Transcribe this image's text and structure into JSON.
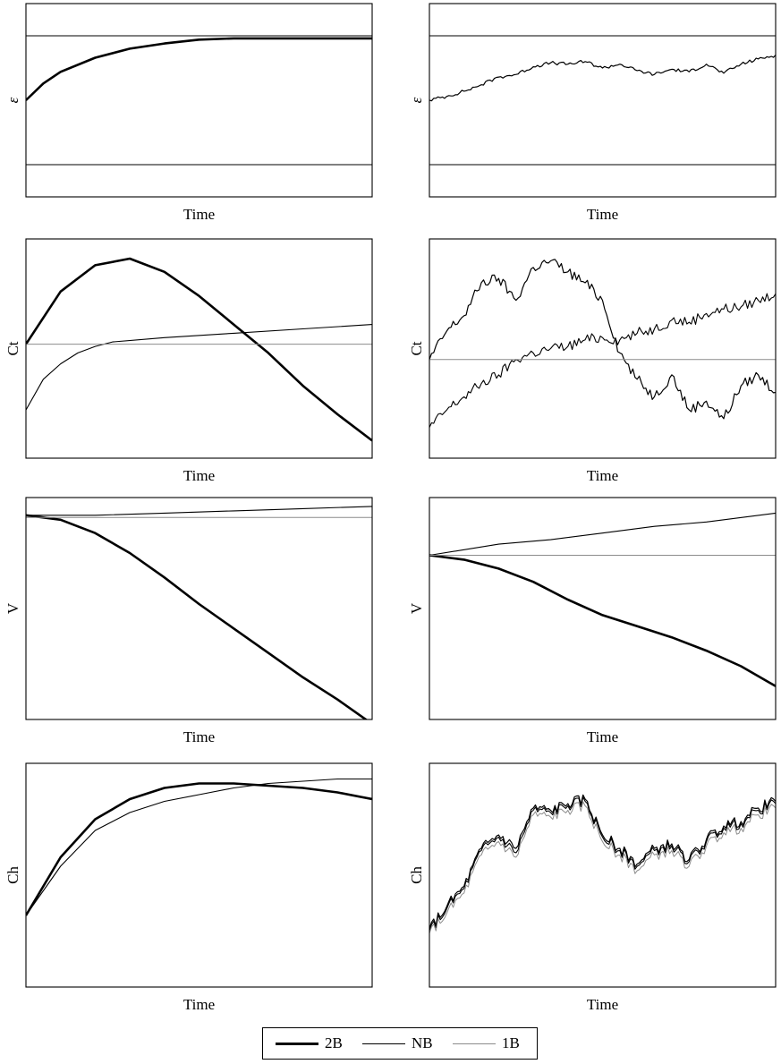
{
  "legend": [
    {
      "label": "2B",
      "color": "#000000",
      "weight": "thick"
    },
    {
      "label": "NB",
      "color": "#000000",
      "weight": "thin"
    },
    {
      "label": "1B",
      "color": "#8c8c8c",
      "weight": "thin"
    }
  ],
  "chart_data": [
    {
      "type": "line",
      "panel": "eps-deterministic",
      "xlabel": "Time",
      "ylabel": "ε",
      "hlines": [
        0.0,
        1.0
      ],
      "ylim": [
        -0.25,
        1.25
      ],
      "xlim": [
        0,
        100
      ],
      "series": [
        {
          "id": "2B",
          "x": [
            0,
            5,
            10,
            20,
            30,
            40,
            50,
            60,
            80,
            100
          ],
          "y": [
            0.5,
            0.63,
            0.72,
            0.83,
            0.9,
            0.94,
            0.97,
            0.98,
            0.98,
            0.98
          ]
        }
      ]
    },
    {
      "type": "line",
      "panel": "eps-stochastic",
      "xlabel": "Time",
      "ylabel": "ε",
      "hlines": [
        0.0,
        1.0
      ],
      "ylim": [
        -0.25,
        1.25
      ],
      "xlim": [
        0,
        100
      ],
      "series": [
        {
          "id": "2B",
          "x": [
            0,
            5,
            10,
            15,
            20,
            25,
            30,
            35,
            40,
            45,
            50,
            55,
            60,
            65,
            70,
            75,
            80,
            85,
            90,
            95,
            100
          ],
          "y": [
            0.5,
            0.53,
            0.57,
            0.62,
            0.68,
            0.7,
            0.76,
            0.79,
            0.78,
            0.8,
            0.75,
            0.78,
            0.73,
            0.7,
            0.74,
            0.72,
            0.78,
            0.71,
            0.78,
            0.82,
            0.85
          ]
        }
      ]
    },
    {
      "type": "line",
      "panel": "ct-deterministic",
      "xlabel": "Time",
      "ylabel": "Ct",
      "ylim": [
        0,
        1
      ],
      "xlim": [
        0,
        100
      ],
      "series": [
        {
          "id": "2B",
          "x": [
            0,
            10,
            20,
            30,
            40,
            50,
            60,
            70,
            80,
            90,
            100
          ],
          "y": [
            0.52,
            0.76,
            0.88,
            0.91,
            0.85,
            0.74,
            0.61,
            0.48,
            0.33,
            0.2,
            0.08
          ]
        },
        {
          "id": "NB",
          "x": [
            0,
            5,
            10,
            15,
            20,
            25,
            40,
            60,
            80,
            100
          ],
          "y": [
            0.22,
            0.36,
            0.43,
            0.48,
            0.51,
            0.53,
            0.55,
            0.57,
            0.59,
            0.61
          ]
        },
        {
          "id": "1B",
          "x": [
            0,
            100
          ],
          "y": [
            0.52,
            0.52
          ]
        }
      ]
    },
    {
      "type": "line",
      "panel": "ct-stochastic",
      "xlabel": "Time",
      "ylabel": "Ct",
      "ylim": [
        0,
        1
      ],
      "xlim": [
        0,
        100
      ],
      "series": [
        {
          "id": "2B",
          "x": [
            0,
            5,
            10,
            15,
            20,
            25,
            30,
            35,
            40,
            45,
            50,
            55,
            60,
            65,
            70,
            75,
            80,
            85,
            90,
            95,
            100
          ],
          "y": [
            0.45,
            0.58,
            0.65,
            0.8,
            0.82,
            0.72,
            0.87,
            0.9,
            0.85,
            0.8,
            0.72,
            0.48,
            0.36,
            0.28,
            0.38,
            0.22,
            0.26,
            0.18,
            0.33,
            0.38,
            0.3
          ]
        },
        {
          "id": "NB",
          "x": [
            0,
            5,
            10,
            15,
            20,
            25,
            30,
            35,
            40,
            45,
            50,
            55,
            60,
            65,
            70,
            75,
            80,
            85,
            90,
            95,
            100
          ],
          "y": [
            0.14,
            0.22,
            0.28,
            0.34,
            0.38,
            0.45,
            0.48,
            0.5,
            0.51,
            0.54,
            0.55,
            0.54,
            0.57,
            0.59,
            0.63,
            0.62,
            0.66,
            0.68,
            0.69,
            0.72,
            0.75
          ]
        },
        {
          "id": "1B",
          "x": [
            0,
            100
          ],
          "y": [
            0.45,
            0.45
          ]
        }
      ]
    },
    {
      "type": "line",
      "panel": "v-deterministic",
      "xlabel": "Time",
      "ylabel": "V",
      "ylim": [
        0,
        1
      ],
      "xlim": [
        0,
        100
      ],
      "series": [
        {
          "id": "2B",
          "x": [
            0,
            10,
            20,
            30,
            40,
            50,
            60,
            70,
            80,
            90,
            100
          ],
          "y": [
            0.92,
            0.9,
            0.84,
            0.75,
            0.64,
            0.52,
            0.41,
            0.3,
            0.19,
            0.09,
            -0.02
          ]
        },
        {
          "id": "NB",
          "x": [
            0,
            20,
            40,
            60,
            80,
            100
          ],
          "y": [
            0.92,
            0.92,
            0.93,
            0.94,
            0.95,
            0.96
          ]
        },
        {
          "id": "1B",
          "x": [
            0,
            100
          ],
          "y": [
            0.91,
            0.91
          ]
        }
      ]
    },
    {
      "type": "line",
      "panel": "v-stochastic",
      "xlabel": "Time",
      "ylabel": "V",
      "ylim": [
        0,
        1
      ],
      "xlim": [
        0,
        100
      ],
      "series": [
        {
          "id": "2B",
          "x": [
            0,
            10,
            20,
            30,
            40,
            50,
            60,
            70,
            80,
            90,
            100
          ],
          "y": [
            0.74,
            0.72,
            0.68,
            0.62,
            0.54,
            0.47,
            0.42,
            0.37,
            0.31,
            0.24,
            0.15
          ]
        },
        {
          "id": "NB",
          "x": [
            0,
            20,
            35,
            50,
            65,
            80,
            100
          ],
          "y": [
            0.74,
            0.79,
            0.81,
            0.84,
            0.87,
            0.89,
            0.93
          ]
        },
        {
          "id": "1B",
          "x": [
            0,
            100
          ],
          "y": [
            0.74,
            0.74
          ]
        }
      ]
    },
    {
      "type": "line",
      "panel": "ch-deterministic",
      "xlabel": "Time",
      "ylabel": "Ch",
      "ylim": [
        0,
        1
      ],
      "xlim": [
        0,
        100
      ],
      "series": [
        {
          "id": "2B",
          "x": [
            0,
            10,
            20,
            30,
            40,
            50,
            60,
            70,
            80,
            90,
            100
          ],
          "y": [
            0.32,
            0.58,
            0.75,
            0.84,
            0.89,
            0.91,
            0.91,
            0.9,
            0.89,
            0.87,
            0.84
          ]
        },
        {
          "id": "NB",
          "x": [
            0,
            10,
            20,
            30,
            40,
            50,
            60,
            70,
            80,
            90,
            100
          ],
          "y": [
            0.32,
            0.54,
            0.7,
            0.78,
            0.83,
            0.86,
            0.89,
            0.91,
            0.92,
            0.93,
            0.93
          ]
        }
      ]
    },
    {
      "type": "line",
      "panel": "ch-stochastic",
      "xlabel": "Time",
      "ylabel": "Ch",
      "ylim": [
        0,
        1
      ],
      "xlim": [
        0,
        100
      ],
      "series": [
        {
          "id": "2B",
          "x": [
            0,
            5,
            10,
            15,
            20,
            25,
            30,
            35,
            40,
            45,
            50,
            55,
            60,
            65,
            70,
            75,
            80,
            85,
            90,
            95,
            100
          ],
          "y": [
            0.26,
            0.36,
            0.45,
            0.62,
            0.68,
            0.62,
            0.8,
            0.79,
            0.82,
            0.84,
            0.68,
            0.62,
            0.55,
            0.62,
            0.64,
            0.57,
            0.66,
            0.72,
            0.74,
            0.8,
            0.83
          ]
        },
        {
          "id": "NB",
          "x": [
            0,
            5,
            10,
            15,
            20,
            25,
            30,
            35,
            40,
            45,
            50,
            55,
            60,
            65,
            70,
            75,
            80,
            85,
            90,
            95,
            100
          ],
          "y": [
            0.25,
            0.35,
            0.44,
            0.61,
            0.67,
            0.6,
            0.79,
            0.78,
            0.81,
            0.83,
            0.67,
            0.61,
            0.54,
            0.61,
            0.63,
            0.56,
            0.65,
            0.71,
            0.73,
            0.79,
            0.82
          ]
        },
        {
          "id": "1B",
          "x": [
            0,
            5,
            10,
            15,
            20,
            25,
            30,
            35,
            40,
            45,
            50,
            55,
            60,
            65,
            70,
            75,
            80,
            85,
            90,
            95,
            100
          ],
          "y": [
            0.24,
            0.33,
            0.42,
            0.59,
            0.65,
            0.58,
            0.77,
            0.76,
            0.79,
            0.81,
            0.65,
            0.59,
            0.52,
            0.59,
            0.61,
            0.54,
            0.63,
            0.69,
            0.71,
            0.77,
            0.8
          ]
        }
      ]
    }
  ]
}
